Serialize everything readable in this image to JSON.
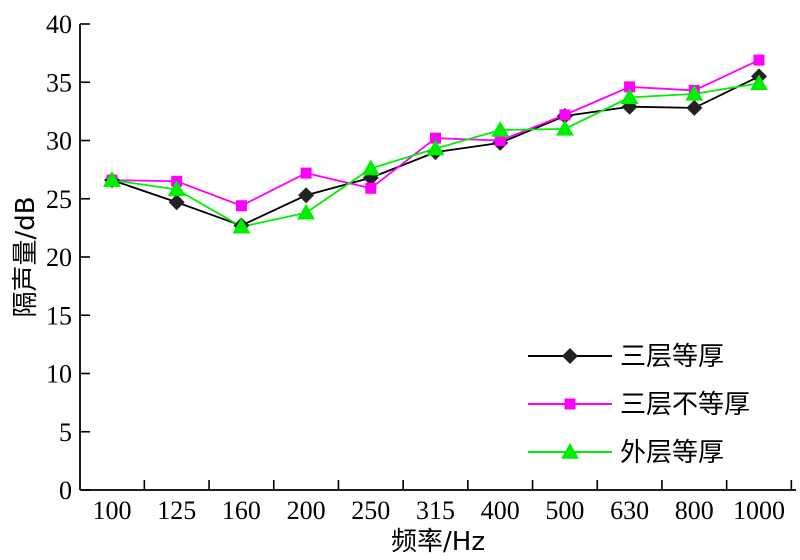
{
  "chart_data": {
    "type": "line",
    "title": "",
    "xlabel": "频率/Hz",
    "ylabel": "隔声量/dB",
    "categories": [
      "100",
      "125",
      "160",
      "200",
      "250",
      "315",
      "400",
      "500",
      "630",
      "800",
      "1000"
    ],
    "ylim": [
      0,
      40
    ],
    "yticks": [
      0,
      5,
      10,
      15,
      20,
      25,
      30,
      35,
      40
    ],
    "grid": false,
    "legend_position": "bottom-right",
    "series": [
      {
        "name": "三层等厚",
        "color": "#222222",
        "marker": "diamond",
        "values": [
          26.6,
          24.7,
          22.7,
          25.3,
          26.8,
          29.0,
          29.8,
          32.1,
          32.9,
          32.8,
          35.5
        ]
      },
      {
        "name": "三层不等厚",
        "color": "#ff00ff",
        "marker": "square",
        "values": [
          26.6,
          26.5,
          24.4,
          27.2,
          25.9,
          30.2,
          30.0,
          32.2,
          34.6,
          34.3,
          36.9
        ]
      },
      {
        "name": "外层等厚",
        "color": "#00ee00",
        "marker": "triangle",
        "values": [
          26.6,
          25.8,
          22.6,
          23.8,
          27.6,
          29.3,
          30.9,
          31.0,
          33.7,
          34.0,
          34.9
        ]
      }
    ]
  }
}
